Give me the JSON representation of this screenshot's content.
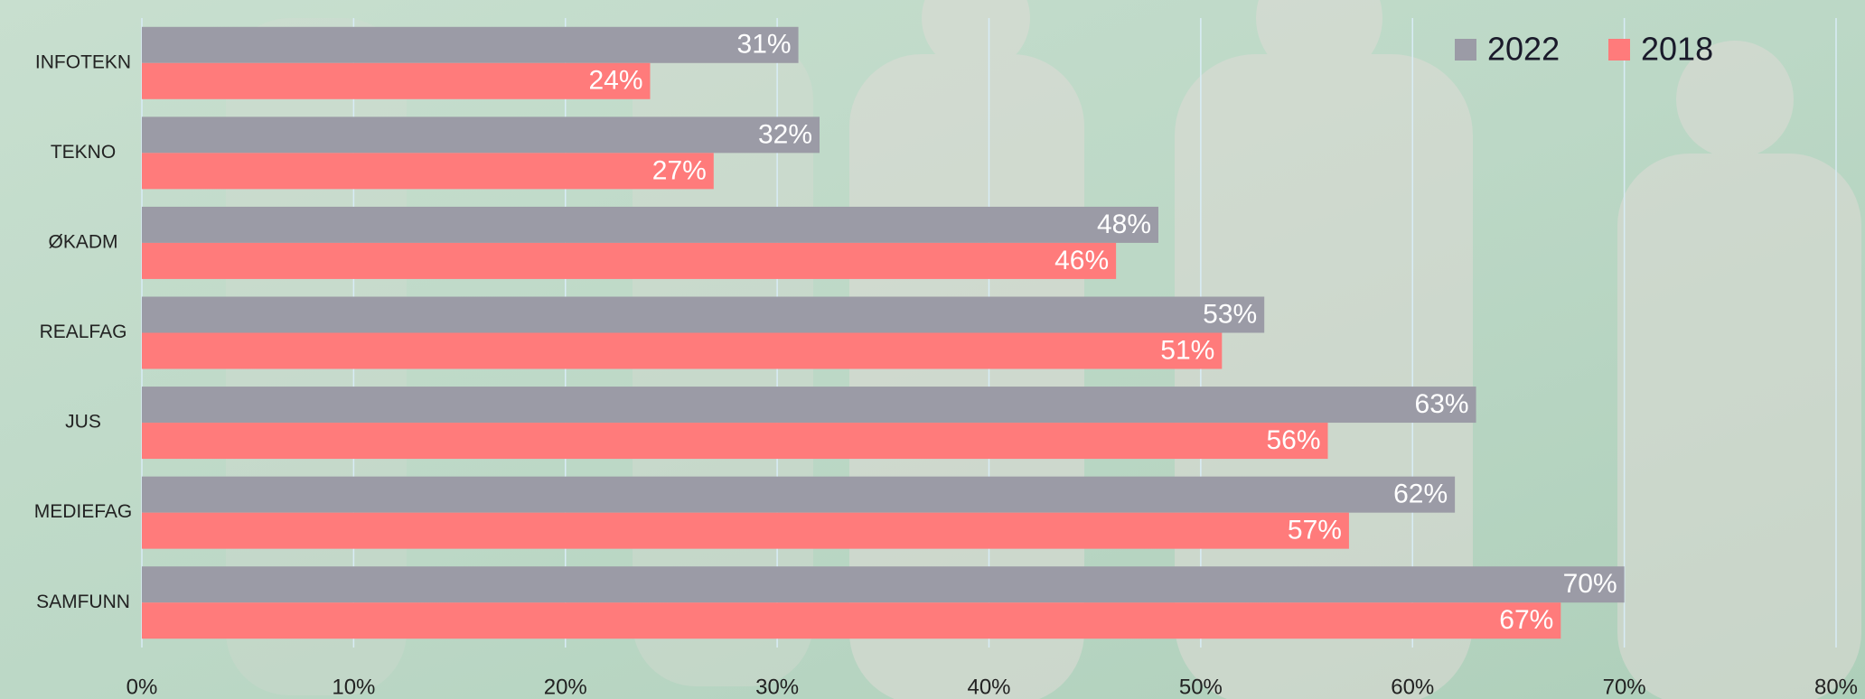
{
  "chart_data": {
    "type": "bar",
    "orientation": "horizontal",
    "categories": [
      "INFOTEKN",
      "TEKNO",
      "ØKADM",
      "REALFAG",
      "JUS",
      "MEDIEFAG",
      "SAMFUNN"
    ],
    "series": [
      {
        "name": "2022",
        "color": "#9b9ba6",
        "values": [
          31,
          32,
          48,
          53,
          63,
          62,
          70
        ],
        "value_labels": [
          "31%",
          "32%",
          "48%",
          "53%",
          "63%",
          "62%",
          "70%"
        ]
      },
      {
        "name": "2018",
        "color": "#ff7b7b",
        "values": [
          24,
          27,
          46,
          51,
          56,
          57,
          67
        ],
        "value_labels": [
          "24%",
          "27%",
          "46%",
          "51%",
          "56%",
          "57%",
          "67%"
        ]
      }
    ],
    "xlim": [
      0,
      80
    ],
    "xticks": [
      {
        "value": 0,
        "label": "0%"
      },
      {
        "value": 10,
        "label": "10%"
      },
      {
        "value": 20,
        "label": "20%"
      },
      {
        "value": 30,
        "label": "30%"
      },
      {
        "value": 40,
        "label": "40%"
      },
      {
        "value": 50,
        "label": "50%"
      },
      {
        "value": 60,
        "label": "60%"
      },
      {
        "value": 70,
        "label": "70%"
      },
      {
        "value": 80,
        "label": "80%"
      }
    ],
    "grid": true,
    "legend": "top-right"
  }
}
